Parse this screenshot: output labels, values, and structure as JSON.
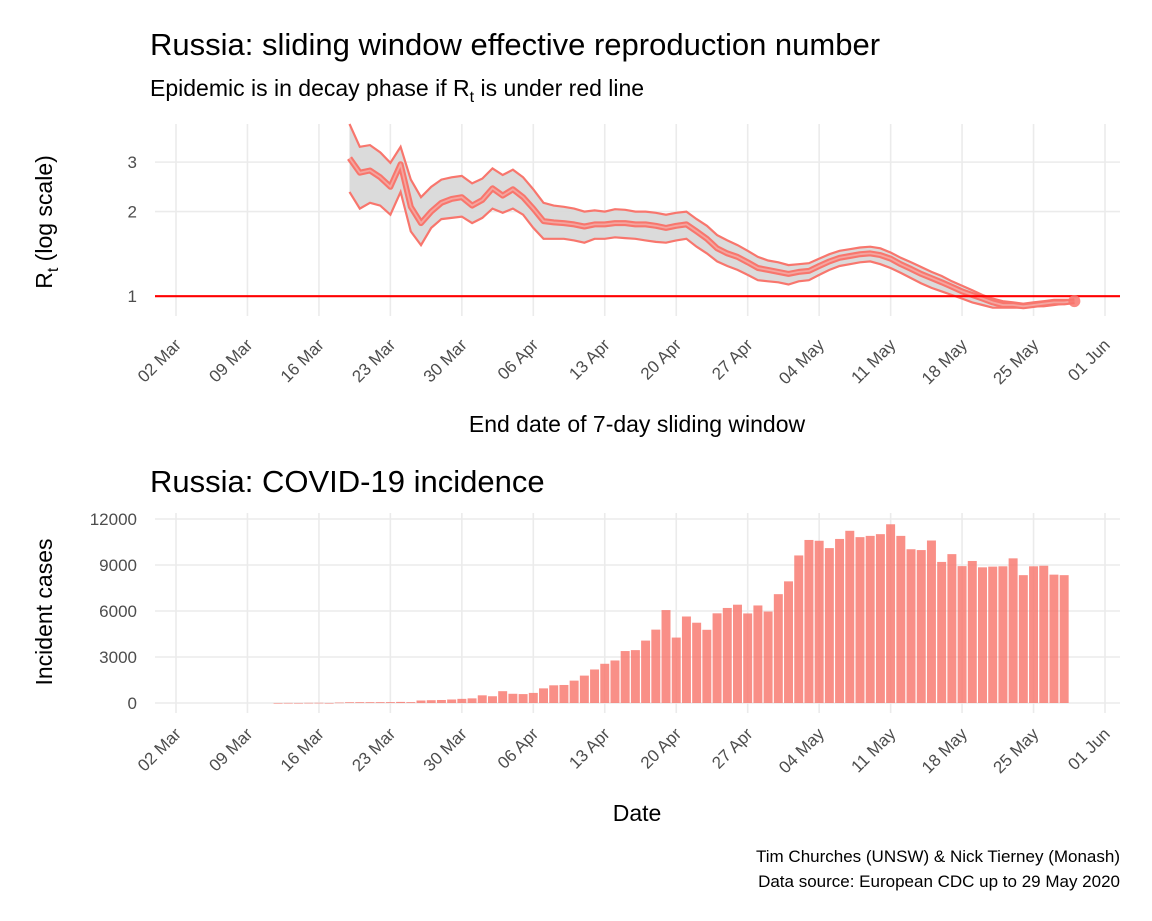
{
  "top_chart": {
    "title": "Russia: sliding window effective reproduction number",
    "subtitle_prefix": "Epidemic is in decay phase if R",
    "subtitle_sub": "t",
    "subtitle_suffix": " is under red line",
    "ylabel_main": "R",
    "ylabel_sub": "t",
    "ylabel_suffix": " (log scale)",
    "xlabel": "End date of 7-day sliding window"
  },
  "bottom_chart": {
    "title": "Russia: COVID-19 incidence",
    "ylabel": "Incident cases",
    "xlabel": "Date"
  },
  "caption": {
    "line1": "Tim Churches (UNSW) & Nick Tierney (Monash)",
    "line2": "Data source: European CDC up to 29 May 2020"
  },
  "colors": {
    "series": "#f8766d",
    "ribbon": "#d9d9d9",
    "threshold": "#ff0000",
    "bars": "#f8766d"
  },
  "chart_data": [
    {
      "type": "line",
      "scale": "log",
      "title": "Russia: sliding window effective reproduction number",
      "xlabel": "End date of 7-day sliding window",
      "ylabel": "Rt (log scale)",
      "x_ticks": [
        "02 Mar",
        "09 Mar",
        "16 Mar",
        "23 Mar",
        "30 Mar",
        "06 Apr",
        "13 Apr",
        "20 Apr",
        "27 Apr",
        "04 May",
        "11 May",
        "18 May",
        "25 May",
        "01 Jun"
      ],
      "y_ticks": [
        1,
        2,
        3
      ],
      "ylim": [
        0.85,
        4.1
      ],
      "x_start": "2020-03-19",
      "x_end": "2020-05-29",
      "threshold": 1,
      "series": [
        {
          "name": "median",
          "values": [
            3.1,
            2.75,
            2.8,
            2.65,
            2.45,
            2.95,
            2.08,
            1.82,
            2.0,
            2.15,
            2.22,
            2.25,
            2.1,
            2.2,
            2.42,
            2.28,
            2.4,
            2.25,
            2.05,
            1.85,
            1.83,
            1.82,
            1.8,
            1.77,
            1.8,
            1.8,
            1.82,
            1.82,
            1.8,
            1.8,
            1.78,
            1.75,
            1.78,
            1.8,
            1.7,
            1.6,
            1.48,
            1.42,
            1.38,
            1.32,
            1.26,
            1.24,
            1.22,
            1.2,
            1.22,
            1.23,
            1.28,
            1.33,
            1.37,
            1.39,
            1.41,
            1.42,
            1.4,
            1.36,
            1.3,
            1.25,
            1.2,
            1.16,
            1.12,
            1.08,
            1.04,
            1.01,
            0.98,
            0.95,
            0.93,
            0.93,
            0.92,
            0.93,
            0.94,
            0.95,
            0.95,
            0.96
          ]
        },
        {
          "name": "lower",
          "values": [
            2.35,
            2.05,
            2.15,
            2.1,
            1.95,
            2.35,
            1.7,
            1.52,
            1.75,
            1.88,
            1.9,
            1.92,
            1.82,
            1.9,
            2.05,
            1.98,
            2.05,
            1.95,
            1.75,
            1.6,
            1.6,
            1.6,
            1.58,
            1.55,
            1.6,
            1.6,
            1.62,
            1.61,
            1.6,
            1.58,
            1.56,
            1.55,
            1.58,
            1.6,
            1.5,
            1.42,
            1.33,
            1.28,
            1.24,
            1.19,
            1.14,
            1.13,
            1.12,
            1.1,
            1.13,
            1.14,
            1.19,
            1.24,
            1.28,
            1.3,
            1.32,
            1.33,
            1.3,
            1.26,
            1.21,
            1.16,
            1.11,
            1.07,
            1.04,
            1.01,
            0.98,
            0.95,
            0.93,
            0.91,
            0.91,
            0.91,
            0.91,
            0.92,
            0.92,
            0.93,
            0.94,
            0.95
          ]
        },
        {
          "name": "upper",
          "values": [
            4.1,
            3.4,
            3.45,
            3.25,
            2.98,
            3.4,
            2.6,
            2.25,
            2.45,
            2.6,
            2.65,
            2.68,
            2.52,
            2.62,
            2.85,
            2.7,
            2.82,
            2.65,
            2.4,
            2.15,
            2.1,
            2.08,
            2.05,
            2.0,
            2.02,
            2.0,
            2.04,
            2.03,
            2.0,
            2.0,
            1.98,
            1.95,
            1.98,
            2.0,
            1.88,
            1.78,
            1.65,
            1.58,
            1.52,
            1.45,
            1.38,
            1.34,
            1.32,
            1.29,
            1.3,
            1.31,
            1.36,
            1.41,
            1.45,
            1.47,
            1.49,
            1.5,
            1.48,
            1.43,
            1.37,
            1.32,
            1.27,
            1.22,
            1.18,
            1.13,
            1.09,
            1.05,
            1.01,
            0.98,
            0.96,
            0.95,
            0.94,
            0.95,
            0.96,
            0.97,
            0.97,
            0.97
          ]
        }
      ]
    },
    {
      "type": "bar",
      "title": "Russia: COVID-19 incidence",
      "xlabel": "Date",
      "ylabel": "Incident cases",
      "x_ticks": [
        "02 Mar",
        "09 Mar",
        "16 Mar",
        "23 Mar",
        "30 Mar",
        "06 Apr",
        "13 Apr",
        "20 Apr",
        "27 Apr",
        "04 May",
        "11 May",
        "18 May",
        "25 May",
        "01 Jun"
      ],
      "y_ticks": [
        0,
        3000,
        6000,
        9000,
        12000
      ],
      "ylim": [
        0,
        12500
      ],
      "x_start": "2020-03-12",
      "values": [
        2,
        6,
        4,
        11,
        14,
        3,
        29,
        49,
        53,
        52,
        54,
        57,
        71,
        57,
        163,
        182,
        196,
        228,
        270,
        302,
        501,
        440,
        771,
        601,
        582,
        658,
        954,
        1154,
        1175,
        1459,
        1786,
        2186,
        2558,
        2774,
        3388,
        3448,
        4070,
        4785,
        6060,
        4268,
        5642,
        5236,
        4774,
        5849,
        6198,
        6411,
        5841,
        6361,
        5966,
        7099,
        7933,
        9623,
        10633,
        10581,
        10102,
        10699,
        11231,
        10817,
        10899,
        11012,
        11656,
        10899,
        10028,
        9974,
        10598,
        9200,
        9709,
        8926,
        9263,
        8849,
        8894,
        8915,
        9434,
        8338,
        8915,
        8952,
        8371,
        8338
      ]
    }
  ]
}
